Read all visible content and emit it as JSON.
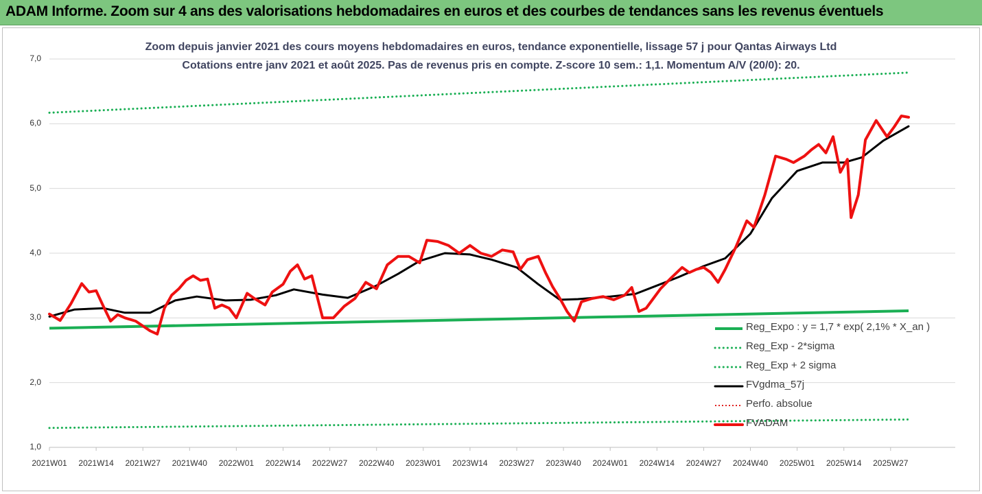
{
  "header": {
    "banner": "ADAM Informe. Zoom sur 4 ans des valorisations hebdomadaires en euros et des courbes de tendances sans les revenus éventuels"
  },
  "chart_data": {
    "type": "line",
    "title": "Zoom depuis janvier 2021 des cours moyens hebdomadaires en euros, tendance exponentielle, lissage 57 j pour Qantas Airways Ltd",
    "subtitle": "Cotations entre janv 2021 et août 2025.  Pas de revenus pris en compte. Z-score 10 sem.: 1,1. Momentum A/V (20/0): 20.",
    "ylim": [
      1.0,
      7.0
    ],
    "y_ticks": [
      "1,0",
      "2,0",
      "3,0",
      "4,0",
      "5,0",
      "6,0",
      "7,0"
    ],
    "x_ticks": [
      "2021W01",
      "2021W14",
      "2021W27",
      "2021W40",
      "2022W01",
      "2022W14",
      "2022W27",
      "2022W40",
      "2023W01",
      "2023W14",
      "2023W27",
      "2023W40",
      "2024W01",
      "2024W14",
      "2024W27",
      "2024W40",
      "2025W01",
      "2025W14",
      "2025W27"
    ],
    "grid": "horizontal",
    "legend_position": "bottom-right",
    "colors": {
      "reg_expo": "#1aaf54",
      "sigma": "#1aaf54",
      "fvgdma": "#000000",
      "perfo": "#e02020",
      "fvadam": "#ee1111"
    },
    "series": [
      {
        "name": "Reg_Expo : y = 1,7 * exp( 2,1% *  X_an )",
        "style": "solid",
        "x": [
          "2021W01",
          "2025W32"
        ],
        "values": [
          2.84,
          3.11
        ]
      },
      {
        "name": "Reg_Exp - 2*sigma",
        "style": "dotted",
        "x": [
          "2021W01",
          "2025W32"
        ],
        "values": [
          1.3,
          1.43
        ]
      },
      {
        "name": "Reg_Exp + 2 sigma",
        "style": "dotted",
        "x": [
          "2021W01",
          "2025W32"
        ],
        "values": [
          6.17,
          6.79
        ]
      },
      {
        "name": "FVgdma_57j",
        "style": "solid",
        "x": [
          "2021W01",
          "2021W08",
          "2021W16",
          "2021W22",
          "2021W29",
          "2021W36",
          "2021W42",
          "2021W50",
          "2022W05",
          "2022W12",
          "2022W17",
          "2022W25",
          "2022W32",
          "2022W40",
          "2022W46",
          "2022W52",
          "2023W07",
          "2023W14",
          "2023W20",
          "2023W27",
          "2023W33",
          "2023W39",
          "2023W44",
          "2024W01",
          "2024W08",
          "2024W14",
          "2024W20",
          "2024W27",
          "2024W33",
          "2024W40",
          "2024W46",
          "2025W01",
          "2025W08",
          "2025W14",
          "2025W19",
          "2025W25",
          "2025W32"
        ],
        "values": [
          3.02,
          3.13,
          3.15,
          3.08,
          3.08,
          3.27,
          3.33,
          3.27,
          3.28,
          3.35,
          3.44,
          3.36,
          3.31,
          3.5,
          3.68,
          3.88,
          4.0,
          3.98,
          3.9,
          3.78,
          3.52,
          3.28,
          3.29,
          3.33,
          3.37,
          3.5,
          3.63,
          3.8,
          3.92,
          4.3,
          4.85,
          5.27,
          5.4,
          5.4,
          5.48,
          5.74,
          5.96
        ]
      },
      {
        "name": "Perfo. absolue",
        "style": "dotted",
        "x": [],
        "values": []
      },
      {
        "name": "FVADAM",
        "style": "thick",
        "x": [
          "2021W01",
          "2021W04",
          "2021W07",
          "2021W10",
          "2021W12",
          "2021W14",
          "2021W16",
          "2021W18",
          "2021W20",
          "2021W22",
          "2021W25",
          "2021W29",
          "2021W31",
          "2021W33",
          "2021W35",
          "2021W37",
          "2021W39",
          "2021W41",
          "2021W43",
          "2021W45",
          "2021W47",
          "2021W49",
          "2021W51",
          "2022W01",
          "2022W04",
          "2022W06",
          "2022W09",
          "2022W11",
          "2022W14",
          "2022W16",
          "2022W18",
          "2022W20",
          "2022W22",
          "2022W25",
          "2022W28",
          "2022W31",
          "2022W34",
          "2022W37",
          "2022W40",
          "2022W43",
          "2022W46",
          "2022W49",
          "2022W52",
          "2023W02",
          "2023W05",
          "2023W08",
          "2023W11",
          "2023W14",
          "2023W17",
          "2023W20",
          "2023W23",
          "2023W26",
          "2023W28",
          "2023W30",
          "2023W33",
          "2023W35",
          "2023W37",
          "2023W39",
          "2023W41",
          "2023W43",
          "2023W45",
          "2023W48",
          "2023W51",
          "2024W02",
          "2024W05",
          "2024W07",
          "2024W09",
          "2024W11",
          "2024W13",
          "2024W15",
          "2024W18",
          "2024W21",
          "2024W23",
          "2024W25",
          "2024W27",
          "2024W29",
          "2024W31",
          "2024W33",
          "2024W36",
          "2024W39",
          "2024W41",
          "2024W44",
          "2024W47",
          "2024W50",
          "2024W52",
          "2025W03",
          "2025W05",
          "2025W07",
          "2025W09",
          "2025W11",
          "2025W13",
          "2025W15",
          "2025W16",
          "2025W18",
          "2025W20",
          "2025W23",
          "2025W26",
          "2025W28",
          "2025W30",
          "2025W32"
        ],
        "values": [
          3.06,
          2.96,
          3.22,
          3.53,
          3.4,
          3.42,
          3.18,
          2.95,
          3.05,
          3.0,
          2.95,
          2.8,
          2.75,
          3.15,
          3.35,
          3.45,
          3.58,
          3.65,
          3.58,
          3.6,
          3.15,
          3.2,
          3.15,
          3.0,
          3.38,
          3.3,
          3.2,
          3.4,
          3.52,
          3.72,
          3.82,
          3.6,
          3.65,
          3.0,
          3.0,
          3.18,
          3.3,
          3.55,
          3.45,
          3.82,
          3.95,
          3.95,
          3.85,
          4.2,
          4.18,
          4.12,
          4.0,
          4.12,
          4.0,
          3.95,
          4.05,
          4.02,
          3.75,
          3.9,
          3.95,
          3.7,
          3.48,
          3.3,
          3.1,
          2.95,
          3.25,
          3.3,
          3.33,
          3.28,
          3.35,
          3.47,
          3.1,
          3.15,
          3.3,
          3.45,
          3.62,
          3.78,
          3.7,
          3.75,
          3.78,
          3.7,
          3.55,
          3.75,
          4.1,
          4.5,
          4.4,
          4.9,
          5.5,
          5.45,
          5.4,
          5.5,
          5.6,
          5.68,
          5.55,
          5.8,
          5.25,
          5.45,
          4.55,
          4.9,
          5.75,
          6.05,
          5.8,
          5.95,
          6.12,
          6.1
        ]
      }
    ]
  }
}
